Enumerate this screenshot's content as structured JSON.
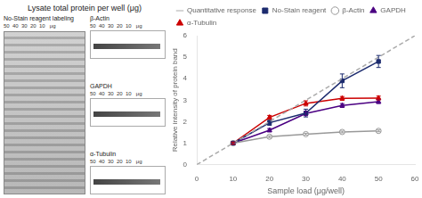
{
  "chart_data": {
    "type": "line",
    "title": "Lysate total protein per well (μg)",
    "xlabel": "Sample load (μg/well)",
    "ylabel": "Relative intensity of protein band",
    "xlim": [
      0,
      60
    ],
    "ylim": [
      0,
      6
    ],
    "xticks": [
      0,
      10,
      20,
      30,
      40,
      50,
      60
    ],
    "yticks": [
      0,
      1,
      2,
      3,
      4,
      5,
      6
    ],
    "x": [
      10,
      20,
      30,
      40,
      50
    ],
    "grid": false,
    "legend": "upper left",
    "annotations": [
      "No-Stain reagent labeling",
      "50  40  30  20  10   μg",
      "β-Actin",
      "50  40  30  20  10   μg",
      "GAPDH",
      "50  40  30  20  10   μg",
      "α-Tubulin",
      "50  40  30  20  10   μg"
    ],
    "series": [
      {
        "name": "Quantitative response",
        "color": "#aaaaaa",
        "x": [
          0,
          60
        ],
        "values": [
          0,
          6
        ],
        "line_style": "dashed",
        "marker": "none"
      },
      {
        "name": "No-Stain reagent",
        "color": "#1c2b6e",
        "values": [
          1.0,
          1.95,
          2.4,
          3.9,
          4.8
        ],
        "error": [
          0.05,
          0.12,
          0.18,
          0.32,
          0.28
        ],
        "line_style": "solid",
        "marker": "square"
      },
      {
        "name": "β-Actin",
        "color": "#999999",
        "values": [
          1.0,
          1.3,
          1.42,
          1.52,
          1.57
        ],
        "error": [
          0.04,
          0.04,
          0.04,
          0.04,
          0.04
        ],
        "line_style": "solid",
        "marker": "open_circle"
      },
      {
        "name": "GAPDH",
        "color": "#4b0082",
        "values": [
          1.0,
          1.6,
          2.38,
          2.75,
          2.93
        ],
        "error": [
          0.05,
          0.08,
          0.1,
          0.09,
          0.09
        ],
        "line_style": "solid",
        "marker": "triangle"
      },
      {
        "name": "α-Tubulin",
        "color": "#cc0000",
        "values": [
          1.0,
          2.2,
          2.85,
          3.08,
          3.1
        ],
        "error": [
          0.05,
          0.09,
          0.12,
          0.09,
          0.09
        ],
        "line_style": "solid",
        "marker": "triangle"
      }
    ]
  }
}
